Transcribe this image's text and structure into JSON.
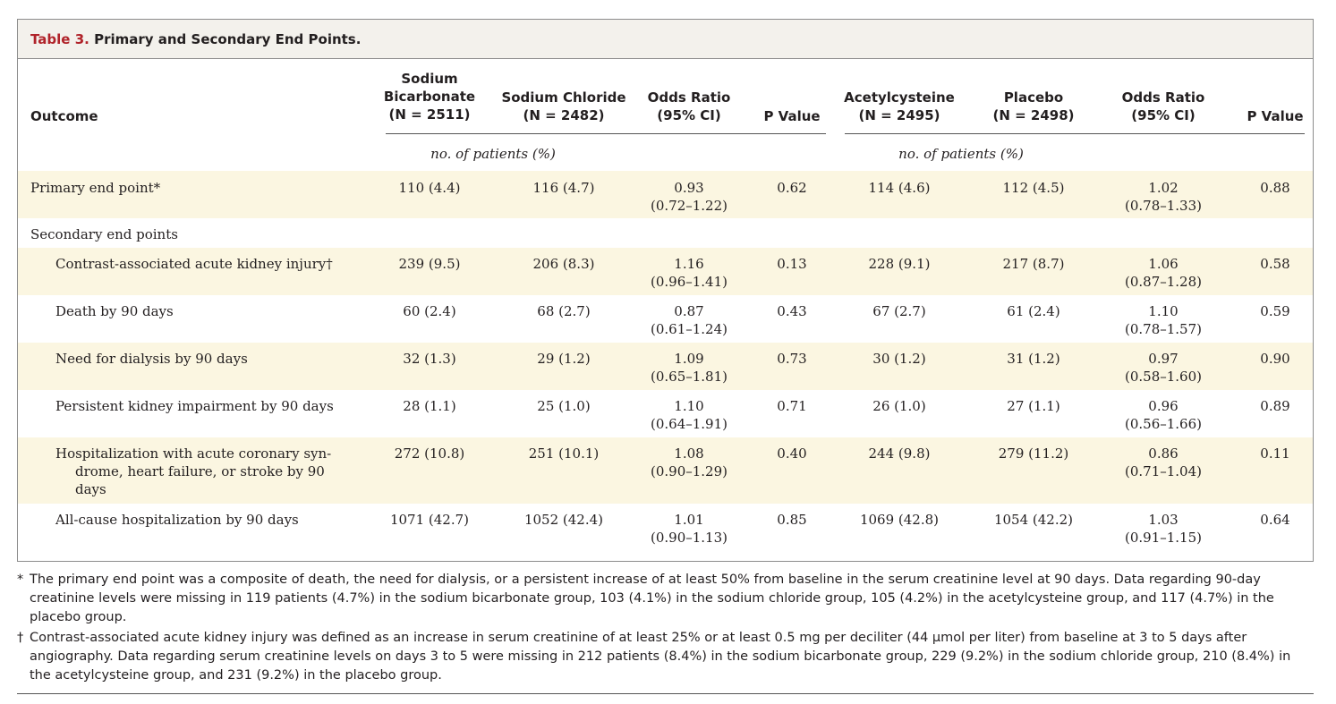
{
  "table": {
    "label": "Table 3.",
    "title": "Primary and Secondary End Points.",
    "headers": {
      "outcome": "Outcome",
      "bicarb": [
        "Sodium",
        "Bicarbonate",
        "(N = 2511)"
      ],
      "chloride": [
        "Sodium Chloride",
        "(N = 2482)"
      ],
      "or1": [
        "Odds Ratio",
        "(95% CI)"
      ],
      "p1": "P Value",
      "acetyl": [
        "Acetylcysteine",
        "(N = 2495)"
      ],
      "placebo": [
        "Placebo",
        "(N = 2498)"
      ],
      "or2": [
        "Odds Ratio",
        "(95% CI)"
      ],
      "p2": "P Value"
    },
    "units_left": "no. of patients (%)",
    "units_right": "no. of patients (%)",
    "rows": [
      {
        "label": "Primary end point*",
        "c1": "110 (4.4)",
        "c2": "116 (4.7)",
        "or1": "0.93",
        "ci1": "(0.72–1.22)",
        "p1": "0.62",
        "c3": "114 (4.6)",
        "c4": "112 (4.5)",
        "or2": "1.02",
        "ci2": "(0.78–1.33)",
        "p2": "0.88"
      },
      {
        "label": "Secondary end points"
      },
      {
        "label": "Contrast-associated acute kidney injury†",
        "c1": "239 (9.5)",
        "c2": "206 (8.3)",
        "or1": "1.16",
        "ci1": "(0.96–1.41)",
        "p1": "0.13",
        "c3": "228 (9.1)",
        "c4": "217 (8.7)",
        "or2": "1.06",
        "ci2": "(0.87–1.28)",
        "p2": "0.58"
      },
      {
        "label": "Death by 90 days",
        "c1": "60 (2.4)",
        "c2": "68 (2.7)",
        "or1": "0.87",
        "ci1": "(0.61–1.24)",
        "p1": "0.43",
        "c3": "67 (2.7)",
        "c4": "61 (2.4)",
        "or2": "1.10",
        "ci2": "(0.78–1.57)",
        "p2": "0.59"
      },
      {
        "label": "Need for dialysis by 90 days",
        "c1": "32 (1.3)",
        "c2": "29 (1.2)",
        "or1": "1.09",
        "ci1": "(0.65–1.81)",
        "p1": "0.73",
        "c3": "30 (1.2)",
        "c4": "31 (1.2)",
        "or2": "0.97",
        "ci2": "(0.58–1.60)",
        "p2": "0.90"
      },
      {
        "label": "Persistent kidney impairment by 90 days",
        "c1": "28 (1.1)",
        "c2": "25 (1.0)",
        "or1": "1.10",
        "ci1": "(0.64–1.91)",
        "p1": "0.71",
        "c3": "26 (1.0)",
        "c4": "27 (1.1)",
        "or2": "0.96",
        "ci2": "(0.56–1.66)",
        "p2": "0.89"
      },
      {
        "label_lines": [
          "Hospitalization with acute coronary syn-",
          "drome, heart failure, or stroke by 90",
          "days"
        ],
        "c1": "272 (10.8)",
        "c2": "251 (10.1)",
        "or1": "1.08",
        "ci1": "(0.90–1.29)",
        "p1": "0.40",
        "c3": "244 (9.8)",
        "c4": "279 (11.2)",
        "or2": "0.86",
        "ci2": "(0.71–1.04)",
        "p2": "0.11"
      },
      {
        "label": "All-cause hospitalization by 90 days",
        "c1": "1071 (42.7)",
        "c2": "1052 (42.4)",
        "or1": "1.01",
        "ci1": "(0.90–1.13)",
        "p1": "0.85",
        "c3": "1069 (42.8)",
        "c4": "1054 (42.2)",
        "or2": "1.03",
        "ci2": "(0.91–1.15)",
        "p2": "0.64"
      }
    ]
  },
  "footnotes": [
    {
      "mark": "*",
      "text": "The primary end point was a composite of death, the need for dialysis, or a persistent increase of at least 50% from baseline in the serum creatinine level at 90 days. Data regarding 90-day creatinine levels were missing in 119 patients (4.7%) in the sodium bicarbonate group, 103 (4.1%) in the sodium chloride group, 105 (4.2%) in the acetylcysteine group, and 117 (4.7%) in the placebo group."
    },
    {
      "mark": "†",
      "text": "Contrast-associated acute kidney injury was defined as an increase in serum creatinine of at least 25% or at least 0.5 mg per deciliter (44 μmol per liter) from baseline at 3 to 5 days after angiography. Data regarding serum creatinine levels on days 3 to 5 were missing in 212 patients (8.4%) in the sodium bicarbonate group, 229 (9.2%) in the sodium chloride group, 210 (8.4%) in the acetylcysteine group, and 231 (9.2%) in the placebo group."
    }
  ],
  "colors": {
    "label_red": "#b0232a",
    "shade": "#fbf6e1",
    "title_bg": "#f3f1ec"
  }
}
